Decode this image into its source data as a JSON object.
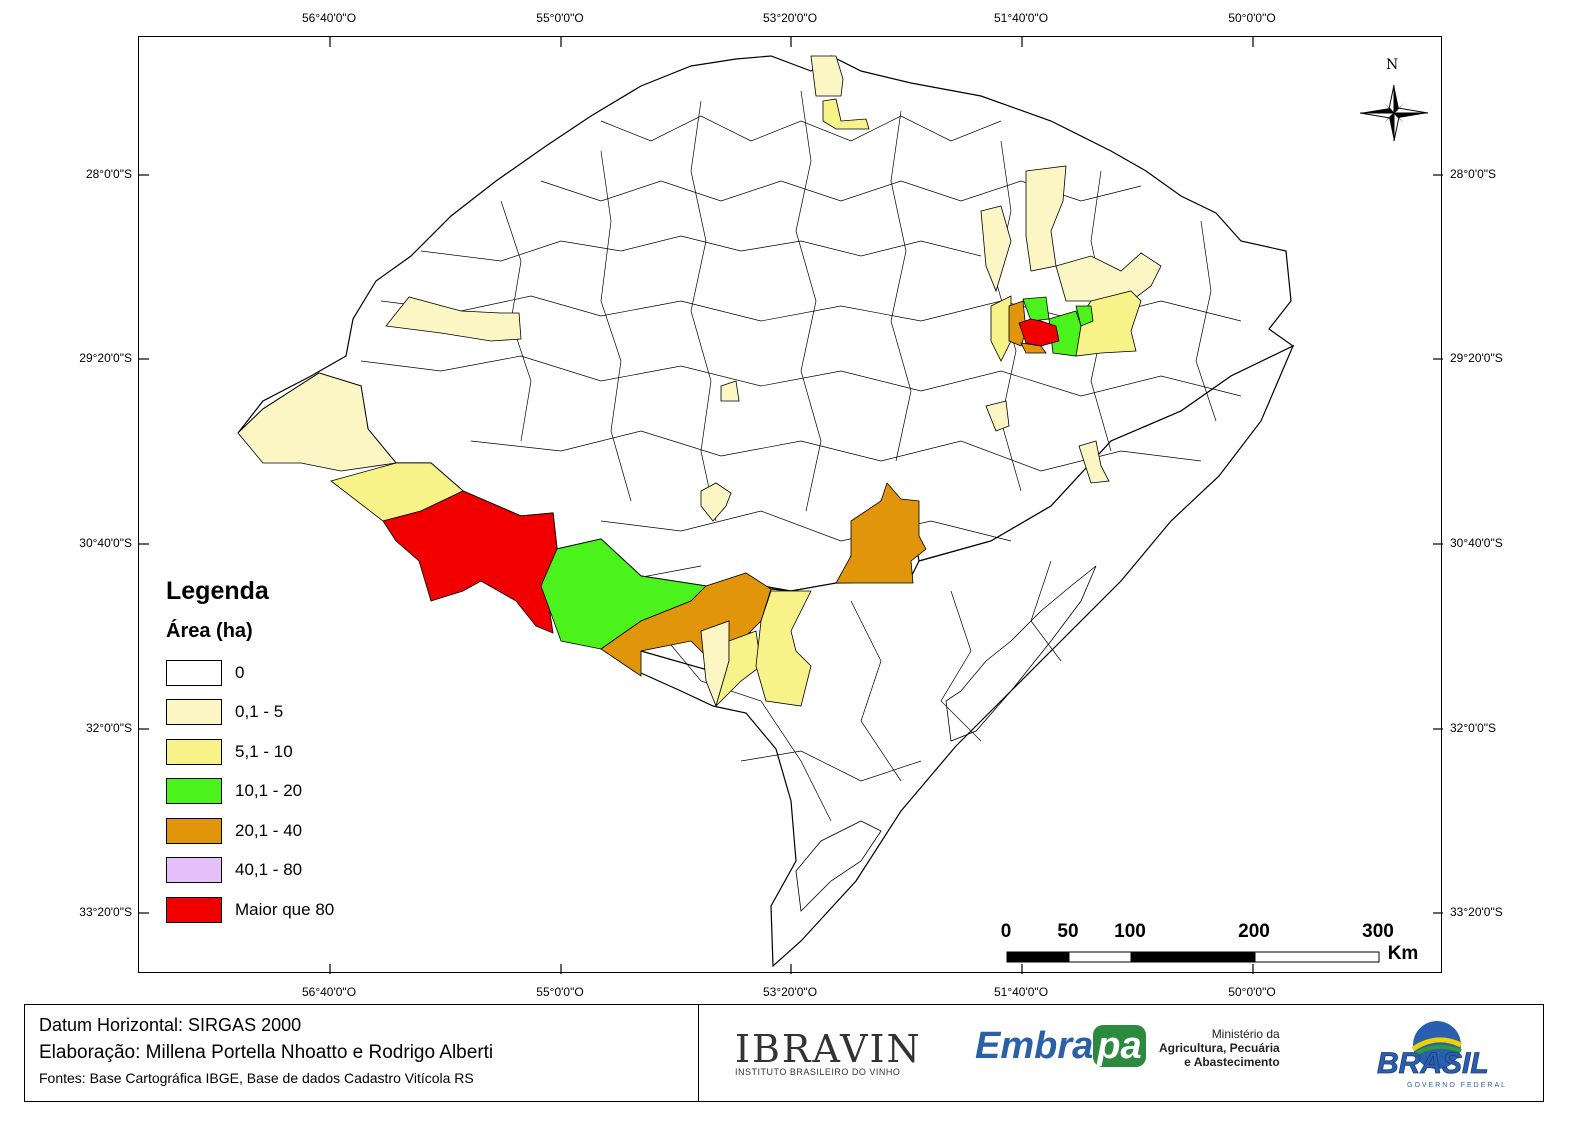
{
  "map": {
    "coord_labels": {
      "top": [
        "56°40'0\"O",
        "55°0'0\"O",
        "53°20'0\"O",
        "51°40'0\"O",
        "50°0'0\"O"
      ],
      "bottom": [
        "56°40'0\"O",
        "55°0'0\"O",
        "53°20'0\"O",
        "51°40'0\"O",
        "50°0'0\"O"
      ],
      "left": [
        "28°0'0\"S",
        "29°20'0\"S",
        "30°40'0\"S",
        "32°0'0\"S",
        "33°20'0\"S"
      ],
      "right": [
        "28°0'0\"S",
        "29°20'0\"S",
        "30°40'0\"S",
        "32°0'0\"S",
        "33°20'0\"S"
      ]
    },
    "north_label": "N",
    "scale": {
      "labels": [
        "0",
        "50",
        "100",
        "200",
        "300"
      ],
      "unit": "Km"
    }
  },
  "legend": {
    "title": "Legenda",
    "subtitle": "Área (ha)",
    "classes": [
      {
        "label": "0",
        "color": "#ffffff"
      },
      {
        "label": "0,1 - 5",
        "color": "#fcf5c4"
      },
      {
        "label": "5,1 - 10",
        "color": "#f8f388"
      },
      {
        "label": "10,1 - 20",
        "color": "#4bf21b"
      },
      {
        "label": "20,1 - 40",
        "color": "#e0950a"
      },
      {
        "label": "40,1 - 80",
        "color": "#e5c0f9"
      },
      {
        "label": "Maior que 80",
        "color": "#f20000"
      }
    ]
  },
  "footer": {
    "datum": "Datum Horizontal: SIRGAS 2000",
    "credits": "Elaboração: Millena Portella Nhoatto e Rodrigo Alberti",
    "sources": "Fontes: Base Cartográfica IBGE, Base de dados Cadastro Vitícola RS",
    "logos": {
      "ibravin": "IBRAVIN",
      "ibravin_subtitle": "INSTITUTO BRASILEIRO DO VINHO",
      "embrapa_a": "Embra",
      "embrapa_b": "pa",
      "ministerio_1": "Ministério da",
      "ministerio_2": "Agricultura, Pecuária",
      "ministerio_3": "e Abastecimento",
      "brasil": "BRASIL",
      "brasil_sub": "GOVERNO FEDERAL"
    }
  }
}
